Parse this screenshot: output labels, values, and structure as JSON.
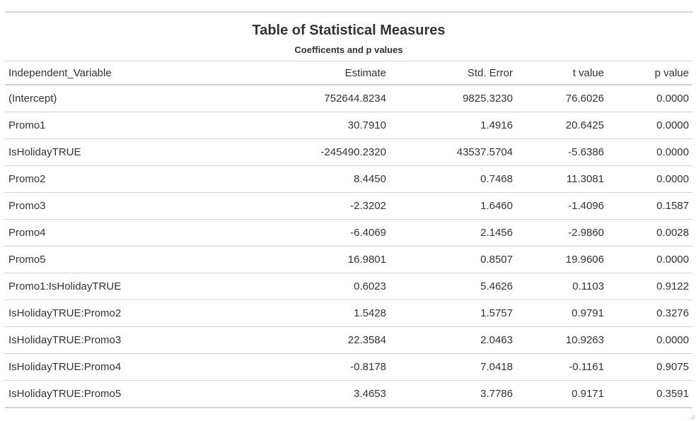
{
  "table": {
    "title": "Table of Statistical Measures",
    "subtitle": "Coefficents and p values",
    "columns": [
      "Independent_Variable",
      "Estimate",
      "Std. Error",
      "t value",
      "p value"
    ],
    "rows": [
      [
        "(Intercept)",
        "752644.8234",
        "9825.3230",
        "76.6026",
        "0.0000"
      ],
      [
        "Promo1",
        "30.7910",
        "1.4916",
        "20.6425",
        "0.0000"
      ],
      [
        "IsHolidayTRUE",
        "-245490.2320",
        "43537.5704",
        "-5.6386",
        "0.0000"
      ],
      [
        "Promo2",
        "8.4450",
        "0.7468",
        "11.3081",
        "0.0000"
      ],
      [
        "Promo3",
        "-2.3202",
        "1.6460",
        "-1.4096",
        "0.1587"
      ],
      [
        "Promo4",
        "-6.4069",
        "2.1456",
        "-2.9860",
        "0.0028"
      ],
      [
        "Promo5",
        "16.9801",
        "0.8507",
        "19.9606",
        "0.0000"
      ],
      [
        "Promo1:IsHolidayTRUE",
        "0.6023",
        "5.4626",
        "0.1103",
        "0.9122"
      ],
      [
        "IsHolidayTRUE:Promo2",
        "1.5428",
        "1.5757",
        "0.9791",
        "0.3276"
      ],
      [
        "IsHolidayTRUE:Promo3",
        "22.3584",
        "2.0463",
        "10.9263",
        "0.0000"
      ],
      [
        "IsHolidayTRUE:Promo4",
        "-0.8178",
        "7.0418",
        "-0.1161",
        "0.9075"
      ],
      [
        "IsHolidayTRUE:Promo5",
        "3.4653",
        "3.7786",
        "0.9171",
        "0.3591"
      ]
    ]
  }
}
